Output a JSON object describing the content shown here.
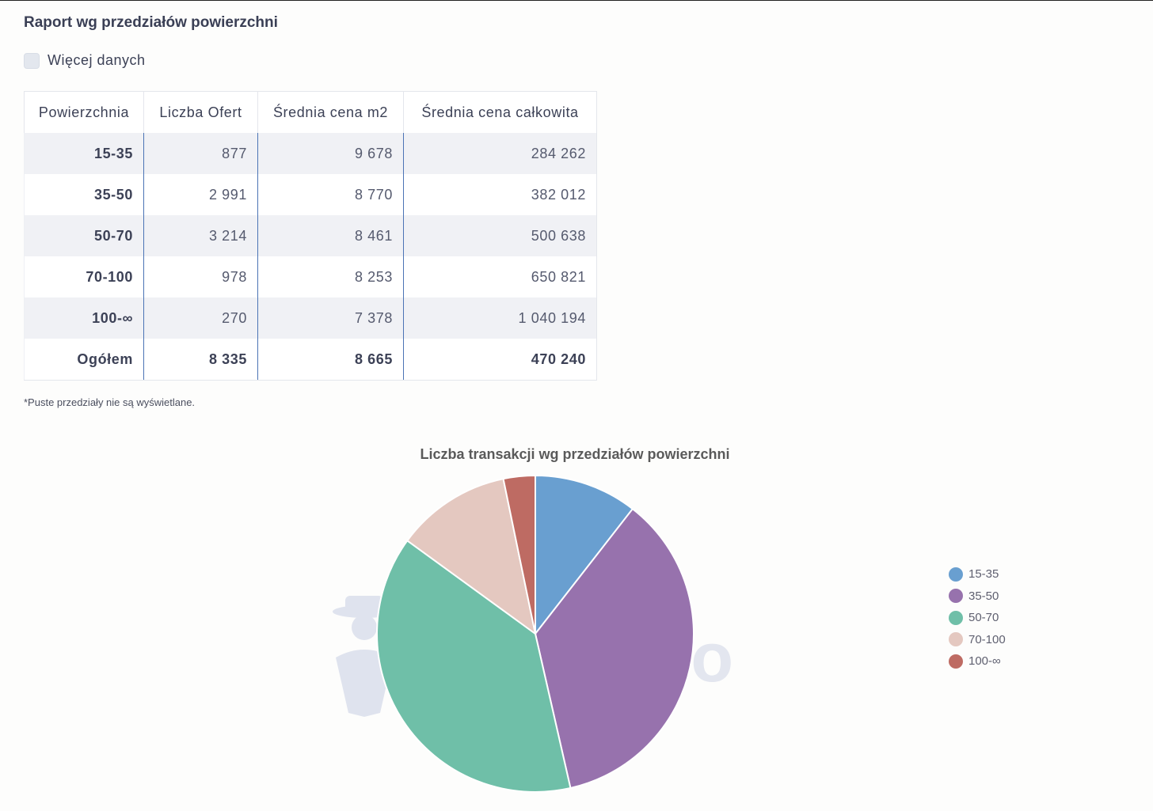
{
  "report": {
    "title": "Raport wg przedziałów powierzchni",
    "more_data_label": "Więcej danych",
    "columns": [
      "Powierzchnia",
      "Liczba Ofert",
      "Średnia cena m2",
      "Średnia cena całkowita"
    ],
    "rows": [
      [
        "15-35",
        "877",
        "9 678",
        "284 262"
      ],
      [
        "35-50",
        "2 991",
        "8 770",
        "382 012"
      ],
      [
        "50-70",
        "3 214",
        "8 461",
        "500 638"
      ],
      [
        "70-100",
        "978",
        "8 253",
        "650 821"
      ],
      [
        "100-∞",
        "270",
        "7 378",
        "1 040 194"
      ]
    ],
    "total": [
      "Ogółem",
      "8 335",
      "8 665",
      "470 240"
    ],
    "note": "*Puste przedziały nie są wyświetlane."
  },
  "watermark": {
    "text": "investoro",
    "icon": "agent-avatar-icon"
  },
  "chart_data": {
    "type": "pie",
    "title": "Liczba transakcji wg przedziałów powierzchni",
    "categories": [
      "15-35",
      "35-50",
      "50-70",
      "70-100",
      "100-∞"
    ],
    "values": [
      877,
      2991,
      3214,
      978,
      270
    ],
    "colors": [
      "#699fd0",
      "#9772ad",
      "#6fbfa8",
      "#e4c8c0",
      "#be6b63"
    ],
    "legend_position": "right"
  }
}
